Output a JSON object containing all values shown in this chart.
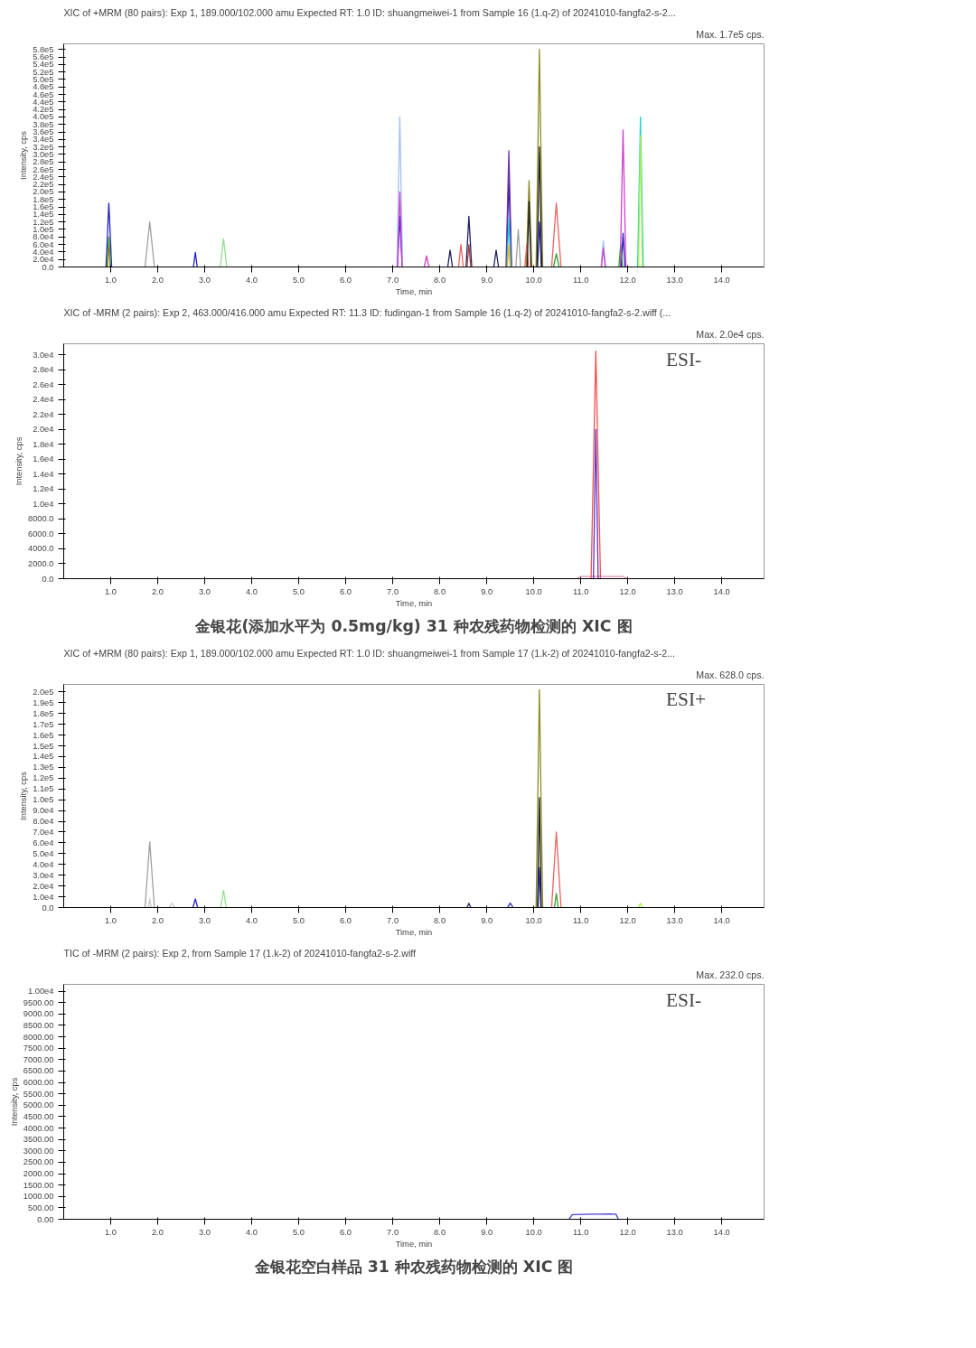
{
  "chart_data": [
    {
      "type": "line",
      "title": "XIC of +MRM (80 pairs): Exp 1, 189.000/102.000 amu Expected RT: 1.0 ID: shuangmeiwei-1 from Sample 16 (1.q-2) of 20241010-fangfa2-s-2...",
      "subtitle": "Max. 1.7e5 cps.",
      "xlabel": "Time, min",
      "ylabel": "Intensity, cps",
      "grid": false,
      "xlim": [
        0,
        14.9
      ],
      "ylim": [
        0,
        595000
      ],
      "xticks": [
        {
          "value": 1,
          "label": "1.0"
        },
        {
          "value": 2,
          "label": "2.0"
        },
        {
          "value": 3,
          "label": "3.0"
        },
        {
          "value": 4,
          "label": "4.0"
        },
        {
          "value": 5,
          "label": "5.0"
        },
        {
          "value": 6,
          "label": "6.0"
        },
        {
          "value": 7,
          "label": "7.0"
        },
        {
          "value": 8,
          "label": "8.0"
        },
        {
          "value": 9,
          "label": "9.0"
        },
        {
          "value": 10,
          "label": "10.0"
        },
        {
          "value": 11,
          "label": "11.0"
        },
        {
          "value": 12,
          "label": "12.0"
        },
        {
          "value": 13,
          "label": "13.0"
        },
        {
          "value": 14,
          "label": "14.0"
        }
      ],
      "yticks": [
        {
          "value": 0,
          "label": "0.0"
        },
        {
          "value": 20000,
          "label": "2.0e4"
        },
        {
          "value": 40000,
          "label": "4.0e4"
        },
        {
          "value": 60000,
          "label": "6.0e4"
        },
        {
          "value": 80000,
          "label": "8.0e4"
        },
        {
          "value": 100000,
          "label": "1.0e5"
        },
        {
          "value": 120000,
          "label": "1.2e5"
        },
        {
          "value": 140000,
          "label": "1.4e5"
        },
        {
          "value": 160000,
          "label": "1.6e5"
        },
        {
          "value": 180000,
          "label": "1.8e5"
        },
        {
          "value": 200000,
          "label": "2.0e5"
        },
        {
          "value": 220000,
          "label": "2.2e5"
        },
        {
          "value": 240000,
          "label": "2.4e5"
        },
        {
          "value": 260000,
          "label": "2.6e5"
        },
        {
          "value": 280000,
          "label": "2.8e5"
        },
        {
          "value": 300000,
          "label": "3.0e5"
        },
        {
          "value": 320000,
          "label": "3.2e5"
        },
        {
          "value": 340000,
          "label": "3.4e5"
        },
        {
          "value": 360000,
          "label": "3.6e5"
        },
        {
          "value": 380000,
          "label": "3.8e5"
        },
        {
          "value": 400000,
          "label": "4.0e5"
        },
        {
          "value": 420000,
          "label": "4.2e5"
        },
        {
          "value": 440000,
          "label": "4.4e5"
        },
        {
          "value": 460000,
          "label": "4.6e5"
        },
        {
          "value": 480000,
          "label": "4.8e5"
        },
        {
          "value": 500000,
          "label": "5.0e5"
        },
        {
          "value": 520000,
          "label": "5.2e5"
        },
        {
          "value": 540000,
          "label": "5.4e5"
        },
        {
          "value": 560000,
          "label": "5.6e5"
        },
        {
          "value": 580000,
          "label": "5.8e5"
        }
      ],
      "series": [
        {
          "color": "#2020c0",
          "x": [
            0.9,
            0.96,
            1.02,
            1.5,
            2.76,
            2.8,
            2.84,
            5,
            7.1,
            7.15,
            7.2,
            8,
            9.42,
            9.47,
            9.52,
            9.8,
            10.08,
            10.12,
            10.16,
            11,
            11.86,
            11.9,
            11.94
          ],
          "values": [
            0,
            170000,
            0,
            null,
            0,
            39000,
            0,
            null,
            0,
            135000,
            0,
            null,
            0,
            245000,
            0,
            null,
            0,
            120000,
            0,
            null,
            0,
            90000,
            0
          ]
        },
        {
          "color": "#30a030",
          "x": [
            0.92,
            0.96,
            1.0,
            5,
            10.42,
            10.48,
            10.54,
            11,
            11.81,
            11.85,
            11.89
          ],
          "values": [
            0,
            80000,
            0,
            null,
            0,
            35000,
            0,
            null,
            0,
            60000,
            0
          ]
        },
        {
          "color": "#8a8a20",
          "x": [
            0.93,
            0.96,
            0.99,
            5,
            9.84,
            9.9,
            9.96,
            10,
            10.05,
            10.12,
            10.19
          ],
          "values": [
            0,
            60000,
            0,
            null,
            0,
            230000,
            0,
            null,
            0,
            580000,
            0
          ]
        },
        {
          "color": "#a0a0a0",
          "x": [
            1.73,
            1.83,
            1.93,
            5,
            9.62,
            9.67,
            9.72
          ],
          "values": [
            0,
            120000,
            0,
            null,
            0,
            100000,
            0
          ]
        },
        {
          "color": "#90e090",
          "x": [
            3.33,
            3.4,
            3.47
          ],
          "values": [
            0,
            75000,
            0
          ]
        },
        {
          "color": "#a0c0f0",
          "x": [
            7.09,
            7.15,
            7.21,
            9,
            11.43,
            11.48,
            11.53
          ],
          "values": [
            0,
            400000,
            0,
            null,
            0,
            70000,
            0
          ]
        },
        {
          "color": "#d040d0",
          "x": [
            7.1,
            7.15,
            7.2,
            7.4,
            7.67,
            7.72,
            7.77,
            9,
            11.44,
            11.48,
            11.52,
            11.7,
            11.84,
            11.9,
            11.96
          ],
          "values": [
            0,
            200000,
            0,
            null,
            0,
            30000,
            0,
            null,
            0,
            50000,
            0,
            null,
            0,
            365000,
            0
          ]
        },
        {
          "color": "#202060",
          "x": [
            8.17,
            8.22,
            8.27,
            8.4,
            8.56,
            8.62,
            8.68,
            8.9,
            9.15,
            9.2,
            9.25
          ],
          "values": [
            0,
            45000,
            0,
            null,
            0,
            135000,
            0,
            null,
            0,
            45000,
            0
          ]
        },
        {
          "color": "#f06060",
          "x": [
            8.4,
            8.45,
            8.5,
            9,
            9.81,
            9.85,
            9.89,
            10.2,
            10.38,
            10.48,
            10.58
          ],
          "values": [
            0,
            60000,
            0,
            null,
            0,
            60000,
            0,
            null,
            0,
            170000,
            0
          ]
        },
        {
          "color": "#a04040",
          "x": [
            8.58,
            8.62,
            8.66
          ],
          "values": [
            0,
            60000,
            0
          ]
        },
        {
          "color": "#202020",
          "x": [
            9.86,
            9.9,
            9.94,
            10,
            10.07,
            10.12,
            10.17
          ],
          "values": [
            0,
            175000,
            0,
            null,
            0,
            320000,
            0
          ]
        },
        {
          "color": "#7030a0",
          "x": [
            9.41,
            9.47,
            9.53
          ],
          "values": [
            0,
            310000,
            0
          ]
        },
        {
          "color": "#20d0e0",
          "x": [
            9.43,
            9.47,
            9.51,
            11,
            12.21,
            12.27,
            12.33
          ],
          "values": [
            0,
            130000,
            0,
            null,
            0,
            400000,
            0
          ]
        },
        {
          "color": "#e0c020",
          "x": [
            9.44,
            9.47,
            9.5
          ],
          "values": [
            0,
            60000,
            0
          ]
        },
        {
          "color": "#b0f040",
          "x": [
            12.23,
            12.27,
            12.31
          ],
          "values": [
            0,
            350000,
            0
          ]
        }
      ]
    },
    {
      "type": "line",
      "title": "XIC of -MRM (2 pairs): Exp 2, 463.000/416.000 amu Expected RT: 11.3 ID: fudingan-1 from Sample 16 (1.q-2) of 20241010-fangfa2-s-2.wiff (...",
      "subtitle": "Max. 2.0e4 cps.",
      "xlabel": "Time, min",
      "ylabel": "Intensity, cps",
      "grid": false,
      "xlim": [
        0,
        14.9
      ],
      "ylim": [
        0,
        31500
      ],
      "annotations": [
        "ESI-",
        "金银花(添加水平为 0.5mg/kg) 31 种农残药物检测的 XIC 图"
      ],
      "xticks": [
        {
          "value": 1,
          "label": "1.0"
        },
        {
          "value": 2,
          "label": "2.0"
        },
        {
          "value": 3,
          "label": "3.0"
        },
        {
          "value": 4,
          "label": "4.0"
        },
        {
          "value": 5,
          "label": "5.0"
        },
        {
          "value": 6,
          "label": "6.0"
        },
        {
          "value": 7,
          "label": "7.0"
        },
        {
          "value": 8,
          "label": "8.0"
        },
        {
          "value": 9,
          "label": "9.0"
        },
        {
          "value": 10,
          "label": "10.0"
        },
        {
          "value": 11,
          "label": "11.0"
        },
        {
          "value": 12,
          "label": "12.0"
        },
        {
          "value": 13,
          "label": "13.0"
        },
        {
          "value": 14,
          "label": "14.0"
        }
      ],
      "yticks": [
        {
          "value": 0,
          "label": "0.0"
        },
        {
          "value": 2000,
          "label": "2000.0"
        },
        {
          "value": 4000,
          "label": "4000.0"
        },
        {
          "value": 6000,
          "label": "6000.0"
        },
        {
          "value": 8000,
          "label": "8000.0"
        },
        {
          "value": 10000,
          "label": "1.0e4"
        },
        {
          "value": 12000,
          "label": "1.2e4"
        },
        {
          "value": 14000,
          "label": "1.4e4"
        },
        {
          "value": 16000,
          "label": "1.6e4"
        },
        {
          "value": 18000,
          "label": "1.8e4"
        },
        {
          "value": 20000,
          "label": "2.0e4"
        },
        {
          "value": 22000,
          "label": "2.2e4"
        },
        {
          "value": 24000,
          "label": "2.4e4"
        },
        {
          "value": 26000,
          "label": "2.6e4"
        },
        {
          "value": 28000,
          "label": "2.8e4"
        },
        {
          "value": 30000,
          "label": "3.0e4"
        }
      ],
      "series": [
        {
          "color": "#e0a0c0",
          "x": [
            10.9,
            11.0,
            11.9,
            12.0
          ],
          "values": [
            0,
            300,
            300,
            0
          ]
        },
        {
          "color": "#f05050",
          "x": [
            11.22,
            11.32,
            11.42
          ],
          "values": [
            0,
            30500,
            0
          ]
        },
        {
          "color": "#6030c0",
          "x": [
            11.27,
            11.32,
            11.37
          ],
          "values": [
            0,
            20000,
            0
          ]
        }
      ]
    },
    {
      "type": "line",
      "title": "XIC of +MRM (80 pairs): Exp 1, 189.000/102.000 amu Expected RT: 1.0 ID: shuangmeiwei-1 from Sample 17 (1.k-2) of 20241010-fangfa2-s-2...",
      "subtitle": "Max. 628.0 cps.",
      "xlabel": "Time, min",
      "ylabel": "Intensity, cps",
      "grid": false,
      "xlim": [
        0,
        14.9
      ],
      "ylim": [
        0,
        207000
      ],
      "annotations": [
        "ESI+"
      ],
      "xticks": [
        {
          "value": 1,
          "label": "1.0"
        },
        {
          "value": 2,
          "label": "2.0"
        },
        {
          "value": 3,
          "label": "3.0"
        },
        {
          "value": 4,
          "label": "4.0"
        },
        {
          "value": 5,
          "label": "5.0"
        },
        {
          "value": 6,
          "label": "6.0"
        },
        {
          "value": 7,
          "label": "7.0"
        },
        {
          "value": 8,
          "label": "8.0"
        },
        {
          "value": 9,
          "label": "9.0"
        },
        {
          "value": 10,
          "label": "10.0"
        },
        {
          "value": 11,
          "label": "11.0"
        },
        {
          "value": 12,
          "label": "12.0"
        },
        {
          "value": 13,
          "label": "13.0"
        },
        {
          "value": 14,
          "label": "14.0"
        }
      ],
      "yticks": [
        {
          "value": 0,
          "label": "0.0"
        },
        {
          "value": 10000,
          "label": "1.0e4"
        },
        {
          "value": 20000,
          "label": "2.0e4"
        },
        {
          "value": 30000,
          "label": "3.0e4"
        },
        {
          "value": 40000,
          "label": "4.0e4"
        },
        {
          "value": 50000,
          "label": "5.0e4"
        },
        {
          "value": 60000,
          "label": "6.0e4"
        },
        {
          "value": 70000,
          "label": "7.0e4"
        },
        {
          "value": 80000,
          "label": "8.0e4"
        },
        {
          "value": 90000,
          "label": "9.0e4"
        },
        {
          "value": 100000,
          "label": "1.0e5"
        },
        {
          "value": 110000,
          "label": "1.1e5"
        },
        {
          "value": 120000,
          "label": "1.2e5"
        },
        {
          "value": 130000,
          "label": "1.3e5"
        },
        {
          "value": 140000,
          "label": "1.4e5"
        },
        {
          "value": 150000,
          "label": "1.5e5"
        },
        {
          "value": 160000,
          "label": "1.6e5"
        },
        {
          "value": 170000,
          "label": "1.7e5"
        },
        {
          "value": 180000,
          "label": "1.8e5"
        },
        {
          "value": 190000,
          "label": "1.9e5"
        },
        {
          "value": 200000,
          "label": "2.0e5"
        }
      ],
      "series": [
        {
          "color": "#a0a0a0",
          "x": [
            1.73,
            1.83,
            1.93
          ],
          "values": [
            0,
            61000,
            0
          ]
        },
        {
          "color": "#c8c8c8",
          "x": [
            1.8,
            1.83,
            1.86,
            2.0,
            2.24,
            2.3,
            2.36
          ],
          "values": [
            0,
            8000,
            0,
            null,
            0,
            4000,
            0
          ]
        },
        {
          "color": "#2020c0",
          "x": [
            2.75,
            2.8,
            2.85,
            5,
            9.44,
            9.5,
            9.56,
            9.8,
            10.09,
            10.12,
            10.15
          ],
          "values": [
            0,
            8000,
            0,
            null,
            0,
            4000,
            0,
            null,
            0,
            37000,
            0
          ]
        },
        {
          "color": "#90e090",
          "x": [
            3.34,
            3.4,
            3.46
          ],
          "values": [
            0,
            16000,
            0
          ]
        },
        {
          "color": "#202060",
          "x": [
            8.58,
            8.62,
            8.66
          ],
          "values": [
            0,
            4000,
            0
          ]
        },
        {
          "color": "#8a8a20",
          "x": [
            10.05,
            10.12,
            10.19
          ],
          "values": [
            0,
            202000,
            0
          ]
        },
        {
          "color": "#202020",
          "x": [
            10.08,
            10.12,
            10.16
          ],
          "values": [
            0,
            102000,
            0
          ]
        },
        {
          "color": "#f06060",
          "x": [
            10.38,
            10.48,
            10.58
          ],
          "values": [
            0,
            70000,
            0
          ]
        },
        {
          "color": "#30a030",
          "x": [
            10.44,
            10.48,
            10.52
          ],
          "values": [
            0,
            13000,
            0
          ]
        },
        {
          "color": "#b0f040",
          "x": [
            12.23,
            12.27,
            12.31
          ],
          "values": [
            0,
            4000,
            0
          ]
        }
      ]
    },
    {
      "type": "line",
      "title": "TIC of -MRM (2 pairs): Exp 2, from Sample 17 (1.k-2) of 20241010-fangfa2-s-2.wiff",
      "subtitle": "Max. 232.0 cps.",
      "xlabel": "Time, min",
      "ylabel": "Intensity, cps",
      "grid": false,
      "xlim": [
        0,
        14.9
      ],
      "ylim": [
        0,
        10300
      ],
      "annotations": [
        "ESI-",
        "金银花空白样品 31 种农残药物检测的 XIC 图"
      ],
      "xticks": [
        {
          "value": 1,
          "label": "1.0"
        },
        {
          "value": 2,
          "label": "2.0"
        },
        {
          "value": 3,
          "label": "3.0"
        },
        {
          "value": 4,
          "label": "4.0"
        },
        {
          "value": 5,
          "label": "5.0"
        },
        {
          "value": 6,
          "label": "6.0"
        },
        {
          "value": 7,
          "label": "7.0"
        },
        {
          "value": 8,
          "label": "8.0"
        },
        {
          "value": 9,
          "label": "9.0"
        },
        {
          "value": 10,
          "label": "10.0"
        },
        {
          "value": 11,
          "label": "11.0"
        },
        {
          "value": 12,
          "label": "12.0"
        },
        {
          "value": 13,
          "label": "13.0"
        },
        {
          "value": 14,
          "label": "14.0"
        }
      ],
      "yticks": [
        {
          "value": 0,
          "label": "0.00"
        },
        {
          "value": 500,
          "label": "500.00"
        },
        {
          "value": 1000,
          "label": "1000.00"
        },
        {
          "value": 1500,
          "label": "1500.00"
        },
        {
          "value": 2000,
          "label": "2000.00"
        },
        {
          "value": 2500,
          "label": "2500.00"
        },
        {
          "value": 3000,
          "label": "3000.00"
        },
        {
          "value": 3500,
          "label": "3500.00"
        },
        {
          "value": 4000,
          "label": "4000.00"
        },
        {
          "value": 4500,
          "label": "4500.00"
        },
        {
          "value": 5000,
          "label": "5000.00"
        },
        {
          "value": 5500,
          "label": "5500.00"
        },
        {
          "value": 6000,
          "label": "6000.00"
        },
        {
          "value": 6500,
          "label": "6500.00"
        },
        {
          "value": 7000,
          "label": "7000.00"
        },
        {
          "value": 7500,
          "label": "7500.00"
        },
        {
          "value": 8000,
          "label": "8000.00"
        },
        {
          "value": 8500,
          "label": "8500.00"
        },
        {
          "value": 9000,
          "label": "9000.00"
        },
        {
          "value": 9500,
          "label": "9500.00"
        },
        {
          "value": 10000,
          "label": "1.00e4"
        }
      ],
      "series": [
        {
          "color": "#4040d0",
          "x": [
            10.75,
            10.82,
            11.0,
            11.2,
            11.4,
            11.6,
            11.75,
            11.8
          ],
          "values": [
            0,
            200,
            210,
            220,
            220,
            230,
            220,
            0
          ]
        }
      ]
    }
  ]
}
